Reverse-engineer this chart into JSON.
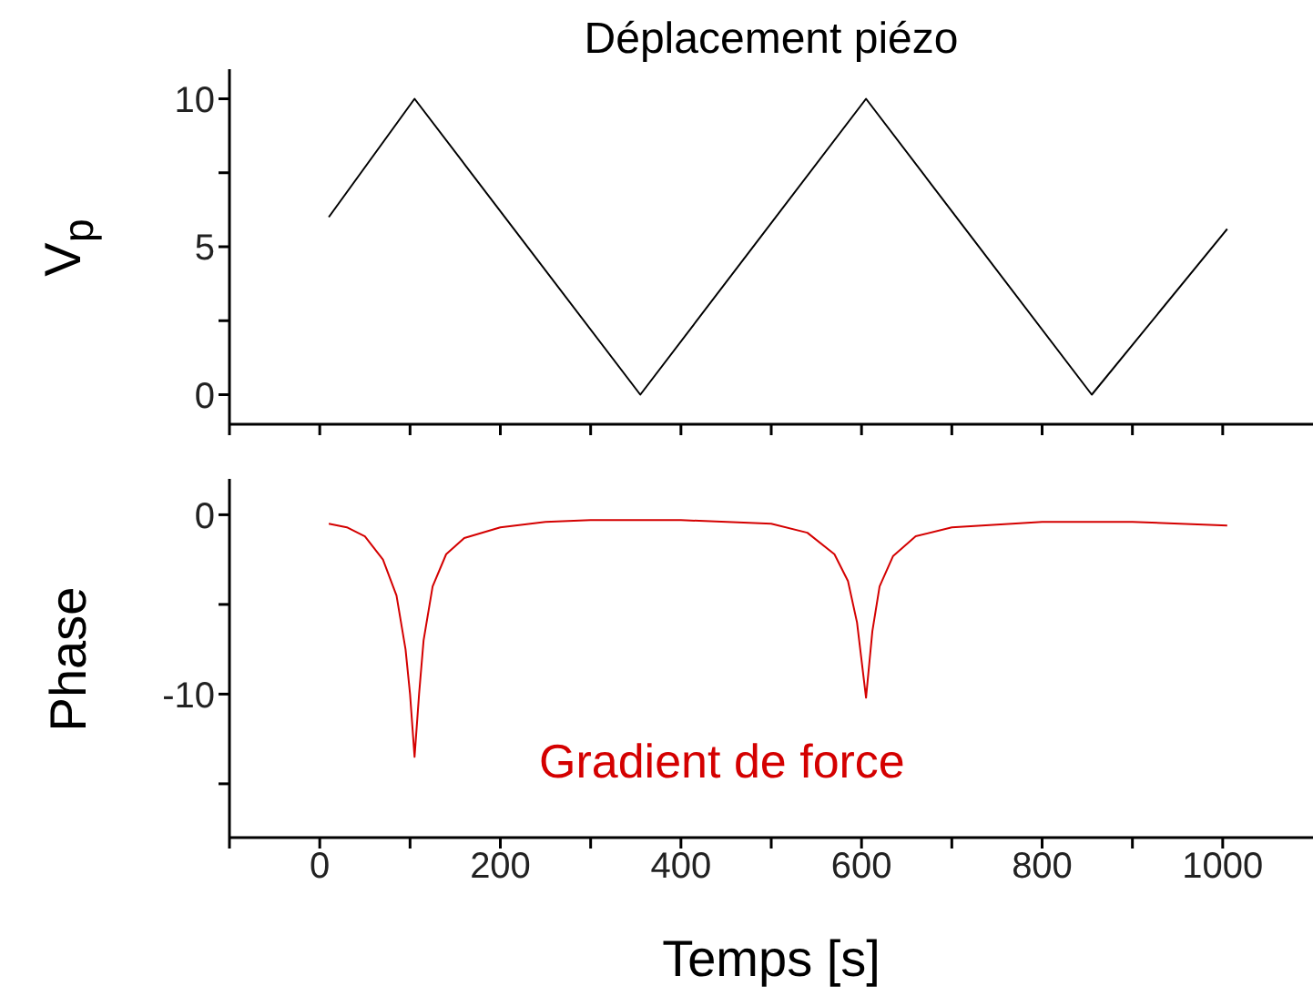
{
  "chart_data": [
    {
      "type": "line",
      "title": "Déplacement piézo",
      "ylabel": "V$_{p}$",
      "tick_labels": "y",
      "grid": false,
      "legend": false,
      "marker": "none",
      "line_style": "solid",
      "xlim": [
        -100,
        1100
      ],
      "xticks": [
        {
          "value": -100,
          "label": null
        },
        {
          "value": 0,
          "label": null
        },
        {
          "value": 100,
          "label": null
        },
        {
          "value": 200,
          "label": null
        },
        {
          "value": 300,
          "label": null
        },
        {
          "value": 400,
          "label": null
        },
        {
          "value": 500,
          "label": null
        },
        {
          "value": 600,
          "label": null
        },
        {
          "value": 700,
          "label": null
        },
        {
          "value": 800,
          "label": null
        },
        {
          "value": 900,
          "label": null
        },
        {
          "value": 1000,
          "label": null
        }
      ],
      "ylim": [
        -1,
        11
      ],
      "yticks": [
        0,
        {
          "value": 2.5,
          "label": null
        },
        5,
        {
          "value": 7.5,
          "label": null
        },
        10
      ],
      "series": [
        {
          "color": "#000000",
          "x": [
            10,
            105,
            355,
            605,
            855,
            1005
          ],
          "values": [
            6,
            10,
            0,
            10,
            0,
            5.6
          ]
        }
      ]
    },
    {
      "type": "line",
      "xlabel": "Temps [s]",
      "ylabel": "Phase",
      "grid": false,
      "legend": false,
      "marker": "none",
      "line_style": "solid",
      "annotations": [
        "Gradient de force"
      ],
      "xlim": [
        -100,
        1100
      ],
      "xticks": [
        {
          "value": -100,
          "label": null
        },
        0,
        {
          "value": 100,
          "label": null
        },
        200,
        {
          "value": 300,
          "label": null
        },
        400,
        {
          "value": 500,
          "label": null
        },
        600,
        {
          "value": 700,
          "label": null
        },
        800,
        {
          "value": 900,
          "label": null
        },
        1000
      ],
      "ylim": [
        -18,
        2
      ],
      "yticks": [
        {
          "value": -15,
          "label": null
        },
        -10,
        {
          "value": -5,
          "label": null
        },
        0
      ],
      "series": [
        {
          "color": "#d40000",
          "x": [
            10,
            30,
            50,
            70,
            85,
            95,
            100,
            105,
            110,
            115,
            125,
            140,
            160,
            200,
            250,
            300,
            400,
            500,
            540,
            570,
            585,
            595,
            605,
            612,
            620,
            635,
            660,
            700,
            800,
            900,
            1005
          ],
          "values": [
            -0.5,
            -0.7,
            -1.2,
            -2.5,
            -4.5,
            -7.5,
            -10,
            -13.5,
            -10,
            -7,
            -4,
            -2.2,
            -1.3,
            -0.7,
            -0.4,
            -0.3,
            -0.3,
            -0.5,
            -1,
            -2.2,
            -3.7,
            -6,
            -10.2,
            -6.5,
            -4,
            -2.3,
            -1.2,
            -0.7,
            -0.4,
            -0.4,
            -0.6
          ]
        }
      ]
    }
  ]
}
